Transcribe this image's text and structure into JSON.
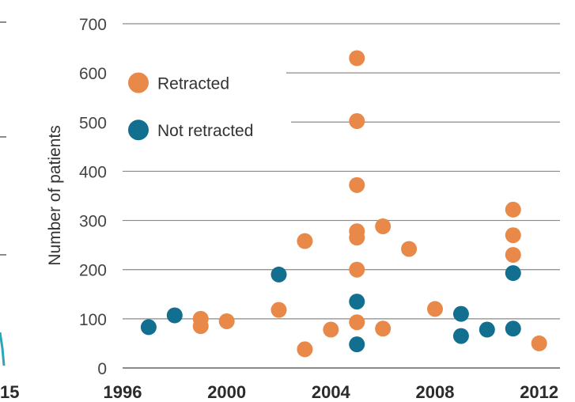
{
  "chart_data": [
    {
      "type": "scatter",
      "left_fragment": {
        "x_tick_fragment": "15"
      },
      "ylabel": "Number of patients",
      "ylim": [
        0,
        700
      ],
      "yticks": [
        0,
        100,
        200,
        300,
        400,
        500,
        600,
        700
      ],
      "xlim": [
        1996,
        2012.8
      ],
      "xticks": [
        1996,
        2000,
        2004,
        2008,
        2012
      ],
      "grid": true,
      "legend_placement": "top-left",
      "series": [
        {
          "name": "Retracted",
          "color": "#E8894A",
          "points": [
            {
              "x": 1999,
              "y": 100
            },
            {
              "x": 1999,
              "y": 85
            },
            {
              "x": 2000,
              "y": 95
            },
            {
              "x": 2002,
              "y": 118
            },
            {
              "x": 2003,
              "y": 258
            },
            {
              "x": 2003,
              "y": 38
            },
            {
              "x": 2004,
              "y": 78
            },
            {
              "x": 2005,
              "y": 630
            },
            {
              "x": 2005,
              "y": 502
            },
            {
              "x": 2005,
              "y": 372
            },
            {
              "x": 2005,
              "y": 278
            },
            {
              "x": 2005,
              "y": 265
            },
            {
              "x": 2005,
              "y": 200
            },
            {
              "x": 2005,
              "y": 93
            },
            {
              "x": 2006,
              "y": 288
            },
            {
              "x": 2006,
              "y": 80
            },
            {
              "x": 2007,
              "y": 242
            },
            {
              "x": 2008,
              "y": 120
            },
            {
              "x": 2011,
              "y": 322
            },
            {
              "x": 2011,
              "y": 270
            },
            {
              "x": 2011,
              "y": 230
            },
            {
              "x": 2012,
              "y": 50
            }
          ]
        },
        {
          "name": "Not retracted",
          "color": "#136F8F",
          "points": [
            {
              "x": 1997,
              "y": 83
            },
            {
              "x": 1998,
              "y": 107
            },
            {
              "x": 2002,
              "y": 190
            },
            {
              "x": 2005,
              "y": 135
            },
            {
              "x": 2005,
              "y": 48
            },
            {
              "x": 2009,
              "y": 110
            },
            {
              "x": 2009,
              "y": 65
            },
            {
              "x": 2010,
              "y": 78
            },
            {
              "x": 2011,
              "y": 193
            },
            {
              "x": 2011,
              "y": 80
            }
          ]
        }
      ]
    }
  ]
}
